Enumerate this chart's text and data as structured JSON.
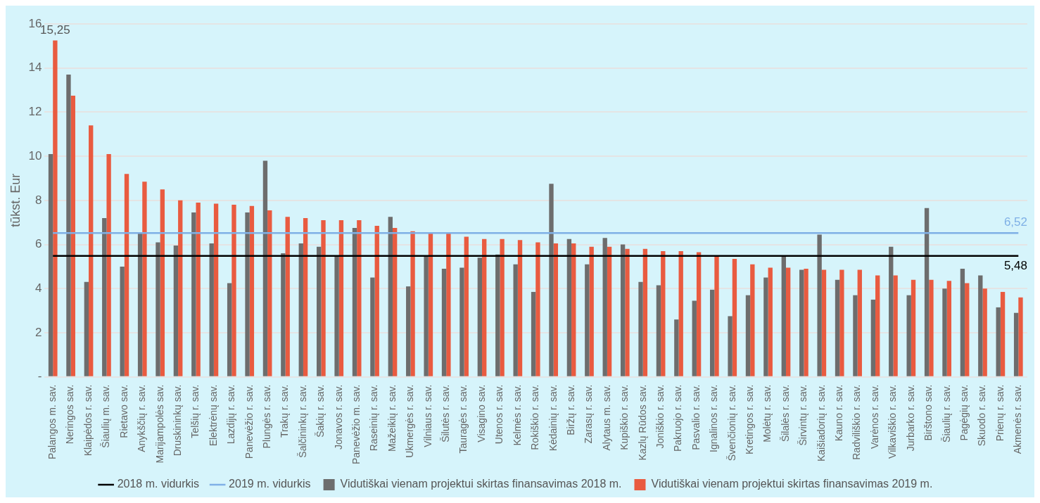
{
  "chart_data": {
    "type": "bar",
    "ylabel": "tūkst. Eur",
    "categories": [
      "Palangos m. sav.",
      "Neringos sav.",
      "Klaipėdos r. sav.",
      "Šiaulių m. sav.",
      "Rietavo sav.",
      "Anykščių r. sav.",
      "Marijampolės sav.",
      "Druskininkų sav.",
      "Telšių r. sav.",
      "Elektrėnų sav.",
      "Lazdijų r. sav.",
      "Panevėžio r. sav.",
      "Plungės r. sav.",
      "Trakų r. sav.",
      "Šalčininkų r. sav.",
      "Šakių r. sav.",
      "Jonavos r. sav.",
      "Panevėžio m. sav.",
      "Raseinių r. sav.",
      "Mažeikių r. sav.",
      "Ukmergės r. sav.",
      "Vilniaus r. sav.",
      "Šilutės r. sav.",
      "Tauragės r. sav.",
      "Visagino sav.",
      "Utenos r. sav.",
      "Kelmės r. sav.",
      "Rokiškio r. sav.",
      "Kėdainių r. sav.",
      "Biržų r. sav.",
      "Zarasų r. sav.",
      "Alytaus m. sav.",
      "Kupiškio r. sav.",
      "Kazlų Rūdos sav.",
      "Joniškio r. sav.",
      "Pakruojo r. sav.",
      "Pasvalio r. sav.",
      "Ignalinos r. sav.",
      "Švenčionių r. sav.",
      "Kretingos r. sav.",
      "Molėtų r. sav.",
      "Šilalės r. sav.",
      "Širvintų r. sav.",
      "Kaišiadorių r. sav.",
      "Kauno r. sav.",
      "Radviliškio r. sav.",
      "Varėnos r. sav.",
      "Vilkaviškio r. sav.",
      "Jurbarko r. sav.",
      "Birštono sav.",
      "Šiaulių r. sav.",
      "Pagėgių sav.",
      "Skuodo r. sav.",
      "Prienų r. sav.",
      "Akmenės r. sav."
    ],
    "series": [
      {
        "name": "Vidutiškai vienam projektui skirtas finansavimas 2018 m.",
        "color": "#6d6d6d",
        "values": [
          10.1,
          13.7,
          4.3,
          7.2,
          5.0,
          6.5,
          6.1,
          5.95,
          7.45,
          6.05,
          4.25,
          7.45,
          9.8,
          5.6,
          6.05,
          5.9,
          5.45,
          6.75,
          4.5,
          7.25,
          4.1,
          5.5,
          4.9,
          4.95,
          5.4,
          5.55,
          5.1,
          3.85,
          8.75,
          6.25,
          5.1,
          6.3,
          6.0,
          4.3,
          4.15,
          2.6,
          3.45,
          3.95,
          2.75,
          3.7,
          4.5,
          5.5,
          4.85,
          6.45,
          4.4,
          3.7,
          3.5,
          5.9,
          3.7,
          7.65,
          4.0,
          4.9,
          4.6,
          3.15,
          2.9
        ]
      },
      {
        "name": "Vidutiškai vienam projektui skirtas finansavimas 2019 m.",
        "color": "#e95b40",
        "values": [
          15.25,
          12.75,
          11.4,
          10.1,
          9.2,
          8.85,
          8.5,
          8.0,
          7.9,
          7.85,
          7.8,
          7.75,
          7.55,
          7.25,
          7.2,
          7.1,
          7.1,
          7.1,
          6.85,
          6.75,
          6.6,
          6.5,
          6.5,
          6.35,
          6.25,
          6.25,
          6.2,
          6.1,
          6.05,
          6.05,
          5.9,
          5.9,
          5.8,
          5.8,
          5.7,
          5.7,
          5.65,
          5.5,
          5.35,
          5.1,
          4.95,
          4.95,
          4.9,
          4.85,
          4.85,
          4.85,
          4.6,
          4.6,
          4.4,
          4.4,
          4.35,
          4.25,
          4.0,
          3.85,
          3.6
        ],
        "value_labels": [
          "15,25",
          null,
          null,
          null,
          null,
          null,
          null,
          null,
          null,
          null,
          null,
          null,
          null,
          null,
          null,
          null,
          null,
          null,
          null,
          null,
          null,
          null,
          null,
          null,
          null,
          null,
          null,
          null,
          null,
          null,
          null,
          null,
          null,
          null,
          null,
          null,
          null,
          null,
          null,
          null,
          null,
          null,
          null,
          null,
          null,
          null,
          null,
          null,
          null,
          null,
          null,
          null,
          null,
          null,
          null
        ]
      },
      {
        "type": "line",
        "name": "2018 m. vidurkis",
        "color": "#000000",
        "values": [
          5.48,
          5.48,
          5.48,
          5.48,
          5.48,
          5.48,
          5.48,
          5.48,
          5.48,
          5.48,
          5.48,
          5.48,
          5.48,
          5.48,
          5.48,
          5.48,
          5.48,
          5.48,
          5.48,
          5.48,
          5.48,
          5.48,
          5.48,
          5.48,
          5.48,
          5.48,
          5.48,
          5.48,
          5.48,
          5.48,
          5.48,
          5.48,
          5.48,
          5.48,
          5.48,
          5.48,
          5.48,
          5.48,
          5.48,
          5.48,
          5.48,
          5.48,
          5.48,
          5.48,
          5.48,
          5.48,
          5.48,
          5.48,
          5.48,
          5.48,
          5.48,
          5.48,
          5.48,
          5.48,
          5.48
        ],
        "value_labels": [
          null,
          null,
          null,
          null,
          null,
          null,
          null,
          null,
          null,
          null,
          null,
          null,
          null,
          null,
          null,
          null,
          null,
          null,
          null,
          null,
          null,
          null,
          null,
          null,
          null,
          null,
          null,
          null,
          null,
          null,
          null,
          null,
          null,
          null,
          null,
          null,
          null,
          null,
          null,
          null,
          null,
          null,
          null,
          null,
          null,
          null,
          null,
          null,
          null,
          null,
          null,
          null,
          null,
          null,
          "5,48"
        ]
      },
      {
        "type": "line",
        "name": "2019 m. vidurkis",
        "color": "#7fb0e6",
        "values": [
          6.52,
          6.52,
          6.52,
          6.52,
          6.52,
          6.52,
          6.52,
          6.52,
          6.52,
          6.52,
          6.52,
          6.52,
          6.52,
          6.52,
          6.52,
          6.52,
          6.52,
          6.52,
          6.52,
          6.52,
          6.52,
          6.52,
          6.52,
          6.52,
          6.52,
          6.52,
          6.52,
          6.52,
          6.52,
          6.52,
          6.52,
          6.52,
          6.52,
          6.52,
          6.52,
          6.52,
          6.52,
          6.52,
          6.52,
          6.52,
          6.52,
          6.52,
          6.52,
          6.52,
          6.52,
          6.52,
          6.52,
          6.52,
          6.52,
          6.52,
          6.52,
          6.52,
          6.52,
          6.52,
          6.52
        ],
        "value_labels": [
          null,
          null,
          null,
          null,
          null,
          null,
          null,
          null,
          null,
          null,
          null,
          null,
          null,
          null,
          null,
          null,
          null,
          null,
          null,
          null,
          null,
          null,
          null,
          null,
          null,
          null,
          null,
          null,
          null,
          null,
          null,
          null,
          null,
          null,
          null,
          null,
          null,
          null,
          null,
          null,
          null,
          null,
          null,
          null,
          null,
          null,
          null,
          null,
          null,
          null,
          null,
          null,
          null,
          null,
          "6,52"
        ]
      }
    ],
    "ylim": [
      0,
      16
    ],
    "yticks": [
      {
        "value": 0,
        "label": "-"
      },
      2,
      4,
      6,
      8,
      10,
      12,
      14,
      16
    ],
    "grid": "y",
    "legend": "bottom",
    "marker": "none",
    "line_style": "solid"
  }
}
